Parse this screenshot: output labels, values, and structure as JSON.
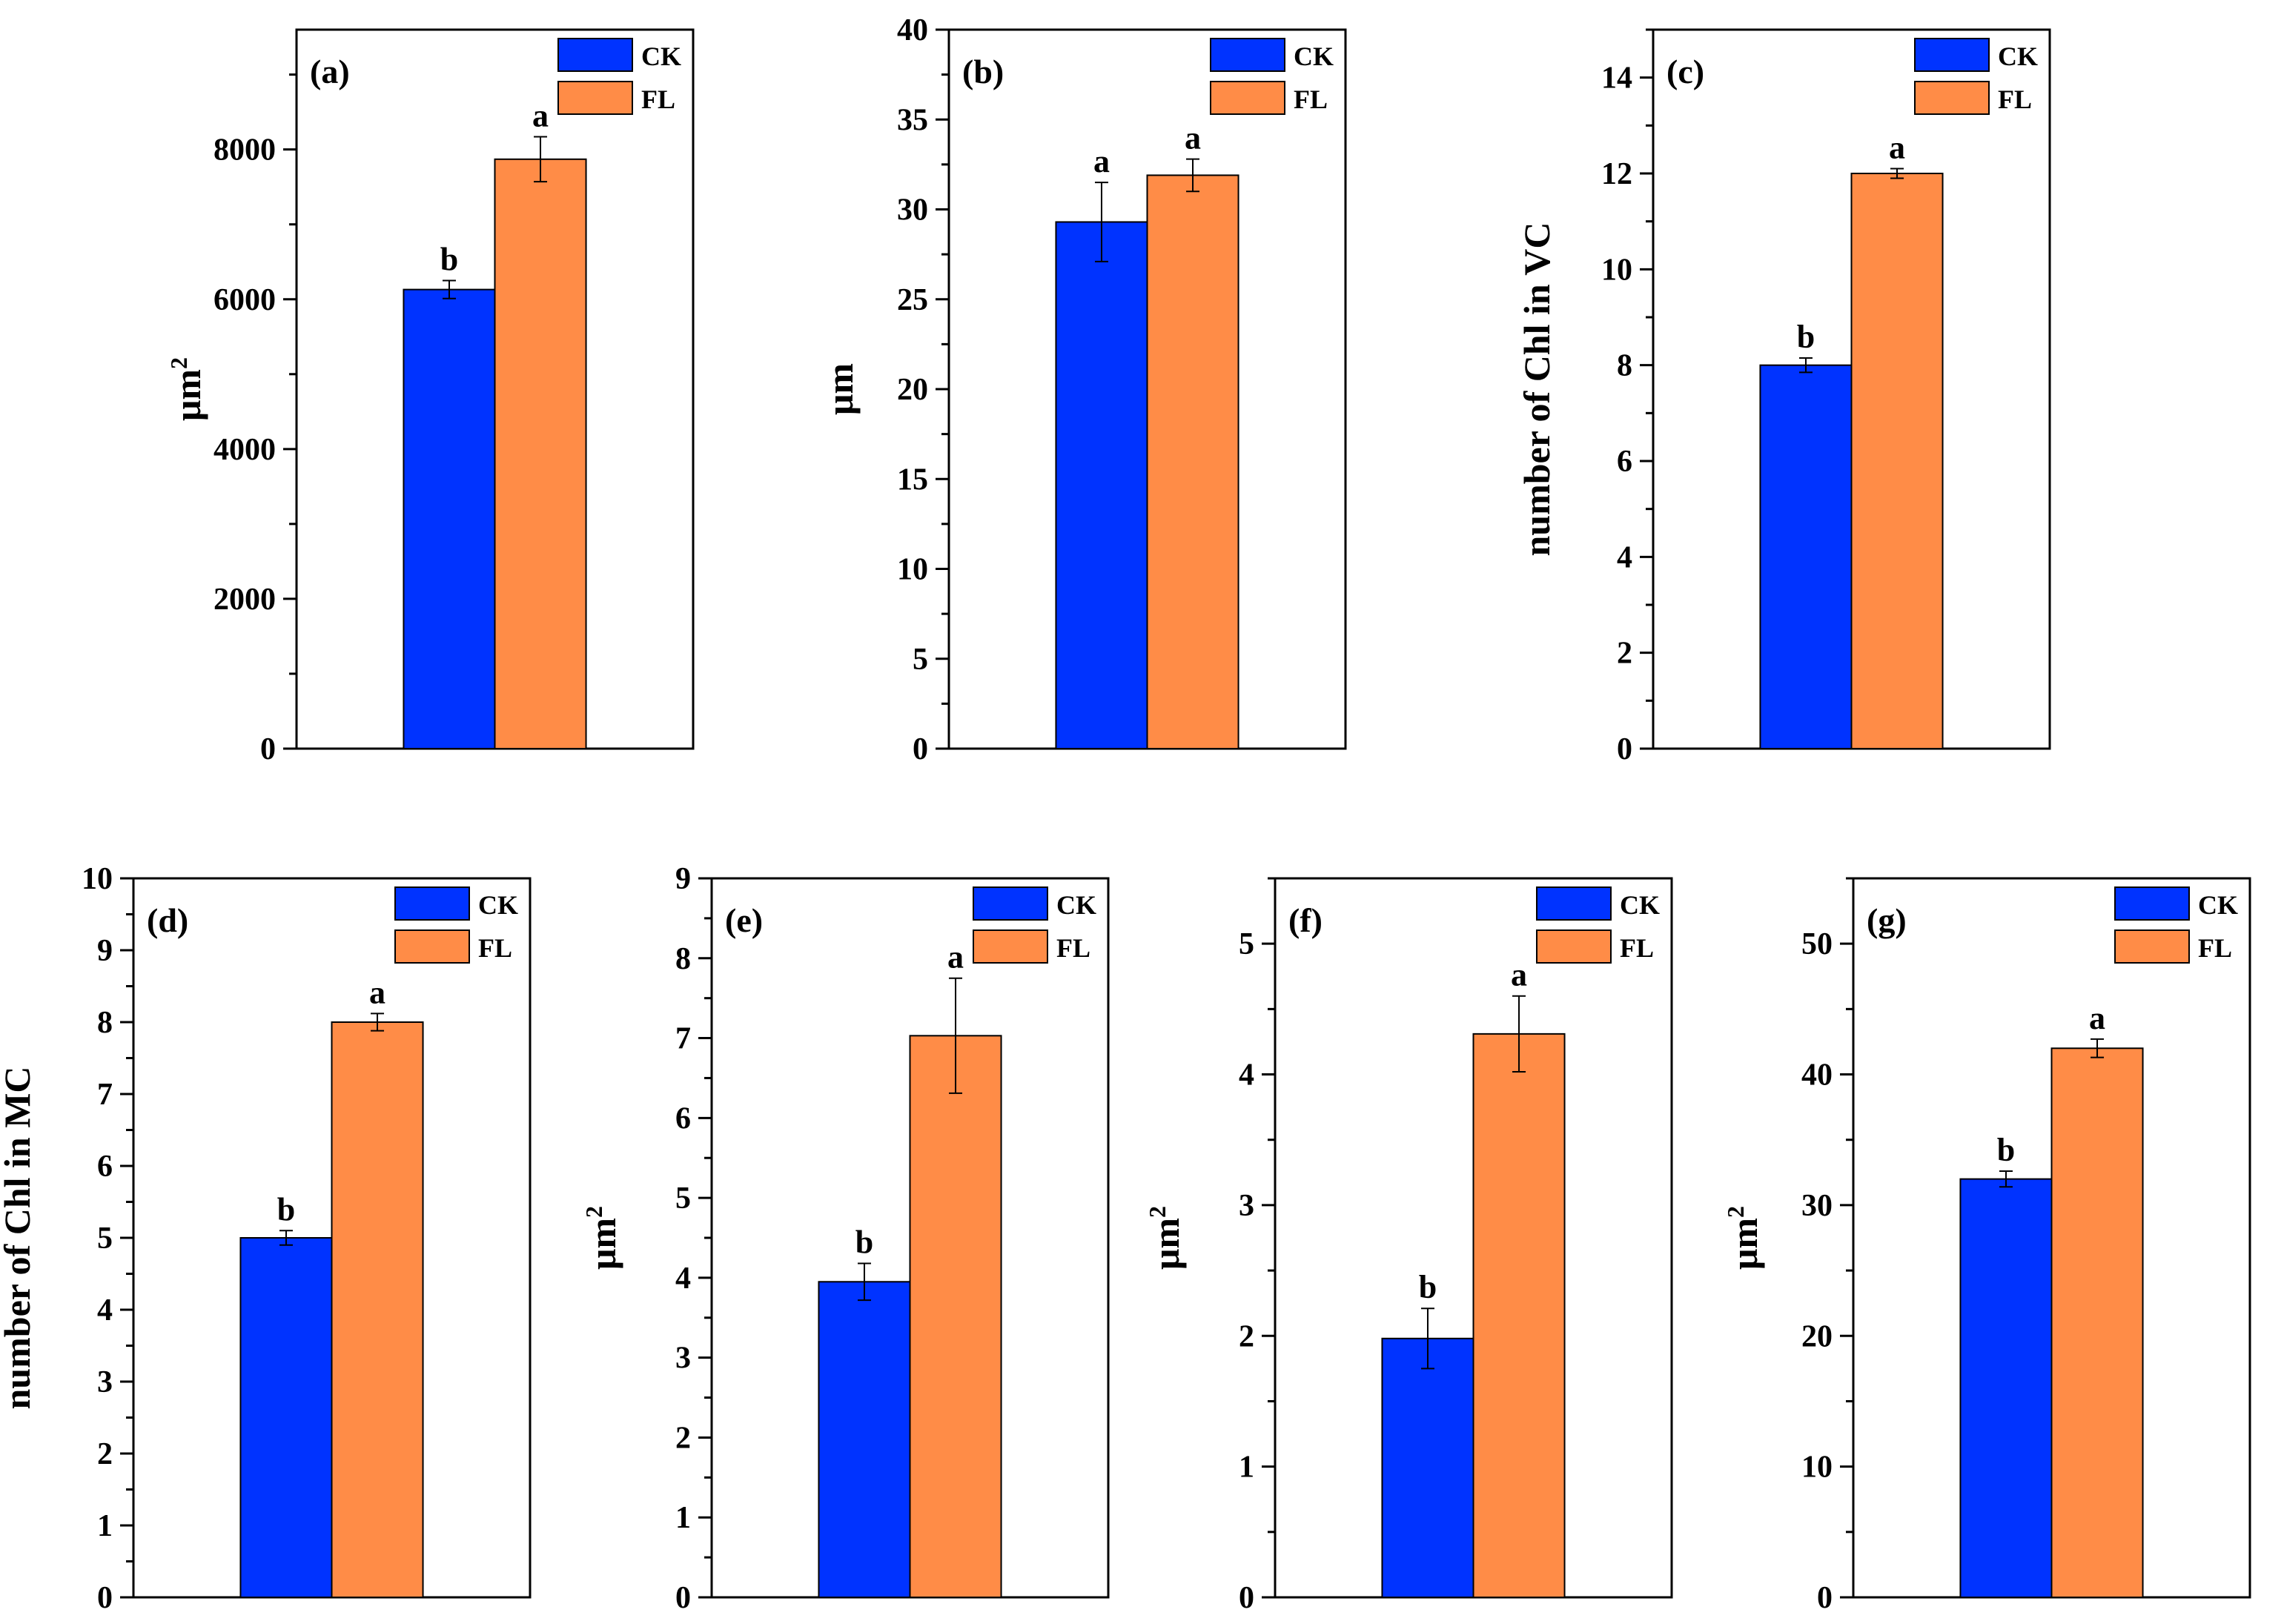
{
  "colors": {
    "CK": "#0033ff",
    "FL": "#ff8c47",
    "axis": "#000000"
  },
  "chart_data": [
    {
      "type": "bar",
      "panel": "(a)",
      "ylabel": "μm",
      "ylabel_sup": "2",
      "ylim": [
        0,
        9600
      ],
      "yticks": [
        0,
        2000,
        4000,
        6000,
        8000
      ],
      "legend": [
        "CK",
        "FL"
      ],
      "legend_position": "top-right",
      "series": [
        {
          "name": "CK",
          "value": 6130,
          "error": 120,
          "sig": "b"
        },
        {
          "name": "FL",
          "value": 7870,
          "error": 300,
          "sig": "a"
        }
      ]
    },
    {
      "type": "bar",
      "panel": "(b)",
      "ylabel": "μm",
      "ylabel_sup": "",
      "ylim": [
        0,
        40
      ],
      "yticks": [
        0,
        5,
        10,
        15,
        20,
        25,
        30,
        35,
        40
      ],
      "legend": [
        "CK",
        "FL"
      ],
      "legend_position": "top-right",
      "series": [
        {
          "name": "CK",
          "value": 29.3,
          "error": 2.2,
          "sig": "a"
        },
        {
          "name": "FL",
          "value": 31.9,
          "error": 0.9,
          "sig": "a"
        }
      ]
    },
    {
      "type": "bar",
      "panel": "(c)",
      "ylabel": "number of Chl in VC",
      "ylabel_sup": "",
      "ylim": [
        0,
        15
      ],
      "yticks": [
        0,
        2,
        4,
        6,
        8,
        10,
        12,
        14
      ],
      "legend": [
        "CK",
        "FL"
      ],
      "legend_position": "top-right",
      "series": [
        {
          "name": "CK",
          "value": 8.0,
          "error": 0.15,
          "sig": "b"
        },
        {
          "name": "FL",
          "value": 12.0,
          "error": 0.1,
          "sig": "a"
        }
      ]
    },
    {
      "type": "bar",
      "panel": "(d)",
      "ylabel": "number of Chl in MC",
      "ylabel_sup": "",
      "ylim": [
        0,
        10
      ],
      "yticks": [
        0,
        1,
        2,
        3,
        4,
        5,
        6,
        7,
        8,
        9,
        10
      ],
      "legend": [
        "CK",
        "FL"
      ],
      "legend_position": "top-right",
      "series": [
        {
          "name": "CK",
          "value": 5.0,
          "error": 0.1,
          "sig": "b"
        },
        {
          "name": "FL",
          "value": 8.0,
          "error": 0.12,
          "sig": "a"
        }
      ]
    },
    {
      "type": "bar",
      "panel": "(e)",
      "ylabel": "μm",
      "ylabel_sup": "2",
      "ylim": [
        0,
        9
      ],
      "yticks": [
        0,
        1,
        2,
        3,
        4,
        5,
        6,
        7,
        8,
        9
      ],
      "legend": [
        "CK",
        "FL"
      ],
      "legend_position": "top-right",
      "series": [
        {
          "name": "CK",
          "value": 3.95,
          "error": 0.23,
          "sig": "b"
        },
        {
          "name": "FL",
          "value": 7.03,
          "error": 0.72,
          "sig": "a"
        }
      ]
    },
    {
      "type": "bar",
      "panel": "(f)",
      "ylabel": "μm",
      "ylabel_sup": "2",
      "ylim": [
        0,
        5.5
      ],
      "yticks": [
        0,
        1,
        2,
        3,
        4,
        5
      ],
      "legend": [
        "CK",
        "FL"
      ],
      "legend_position": "top-right",
      "series": [
        {
          "name": "CK",
          "value": 1.98,
          "error": 0.23,
          "sig": "b"
        },
        {
          "name": "FL",
          "value": 4.31,
          "error": 0.29,
          "sig": "a"
        }
      ]
    },
    {
      "type": "bar",
      "panel": "(g)",
      "ylabel": "μm",
      "ylabel_sup": "2",
      "ylim": [
        0,
        55
      ],
      "yticks": [
        0,
        10,
        20,
        30,
        40,
        50
      ],
      "legend": [
        "CK",
        "FL"
      ],
      "legend_position": "top-right",
      "series": [
        {
          "name": "CK",
          "value": 32.0,
          "error": 0.6,
          "sig": "b"
        },
        {
          "name": "FL",
          "value": 42.0,
          "error": 0.7,
          "sig": "a"
        }
      ]
    }
  ]
}
